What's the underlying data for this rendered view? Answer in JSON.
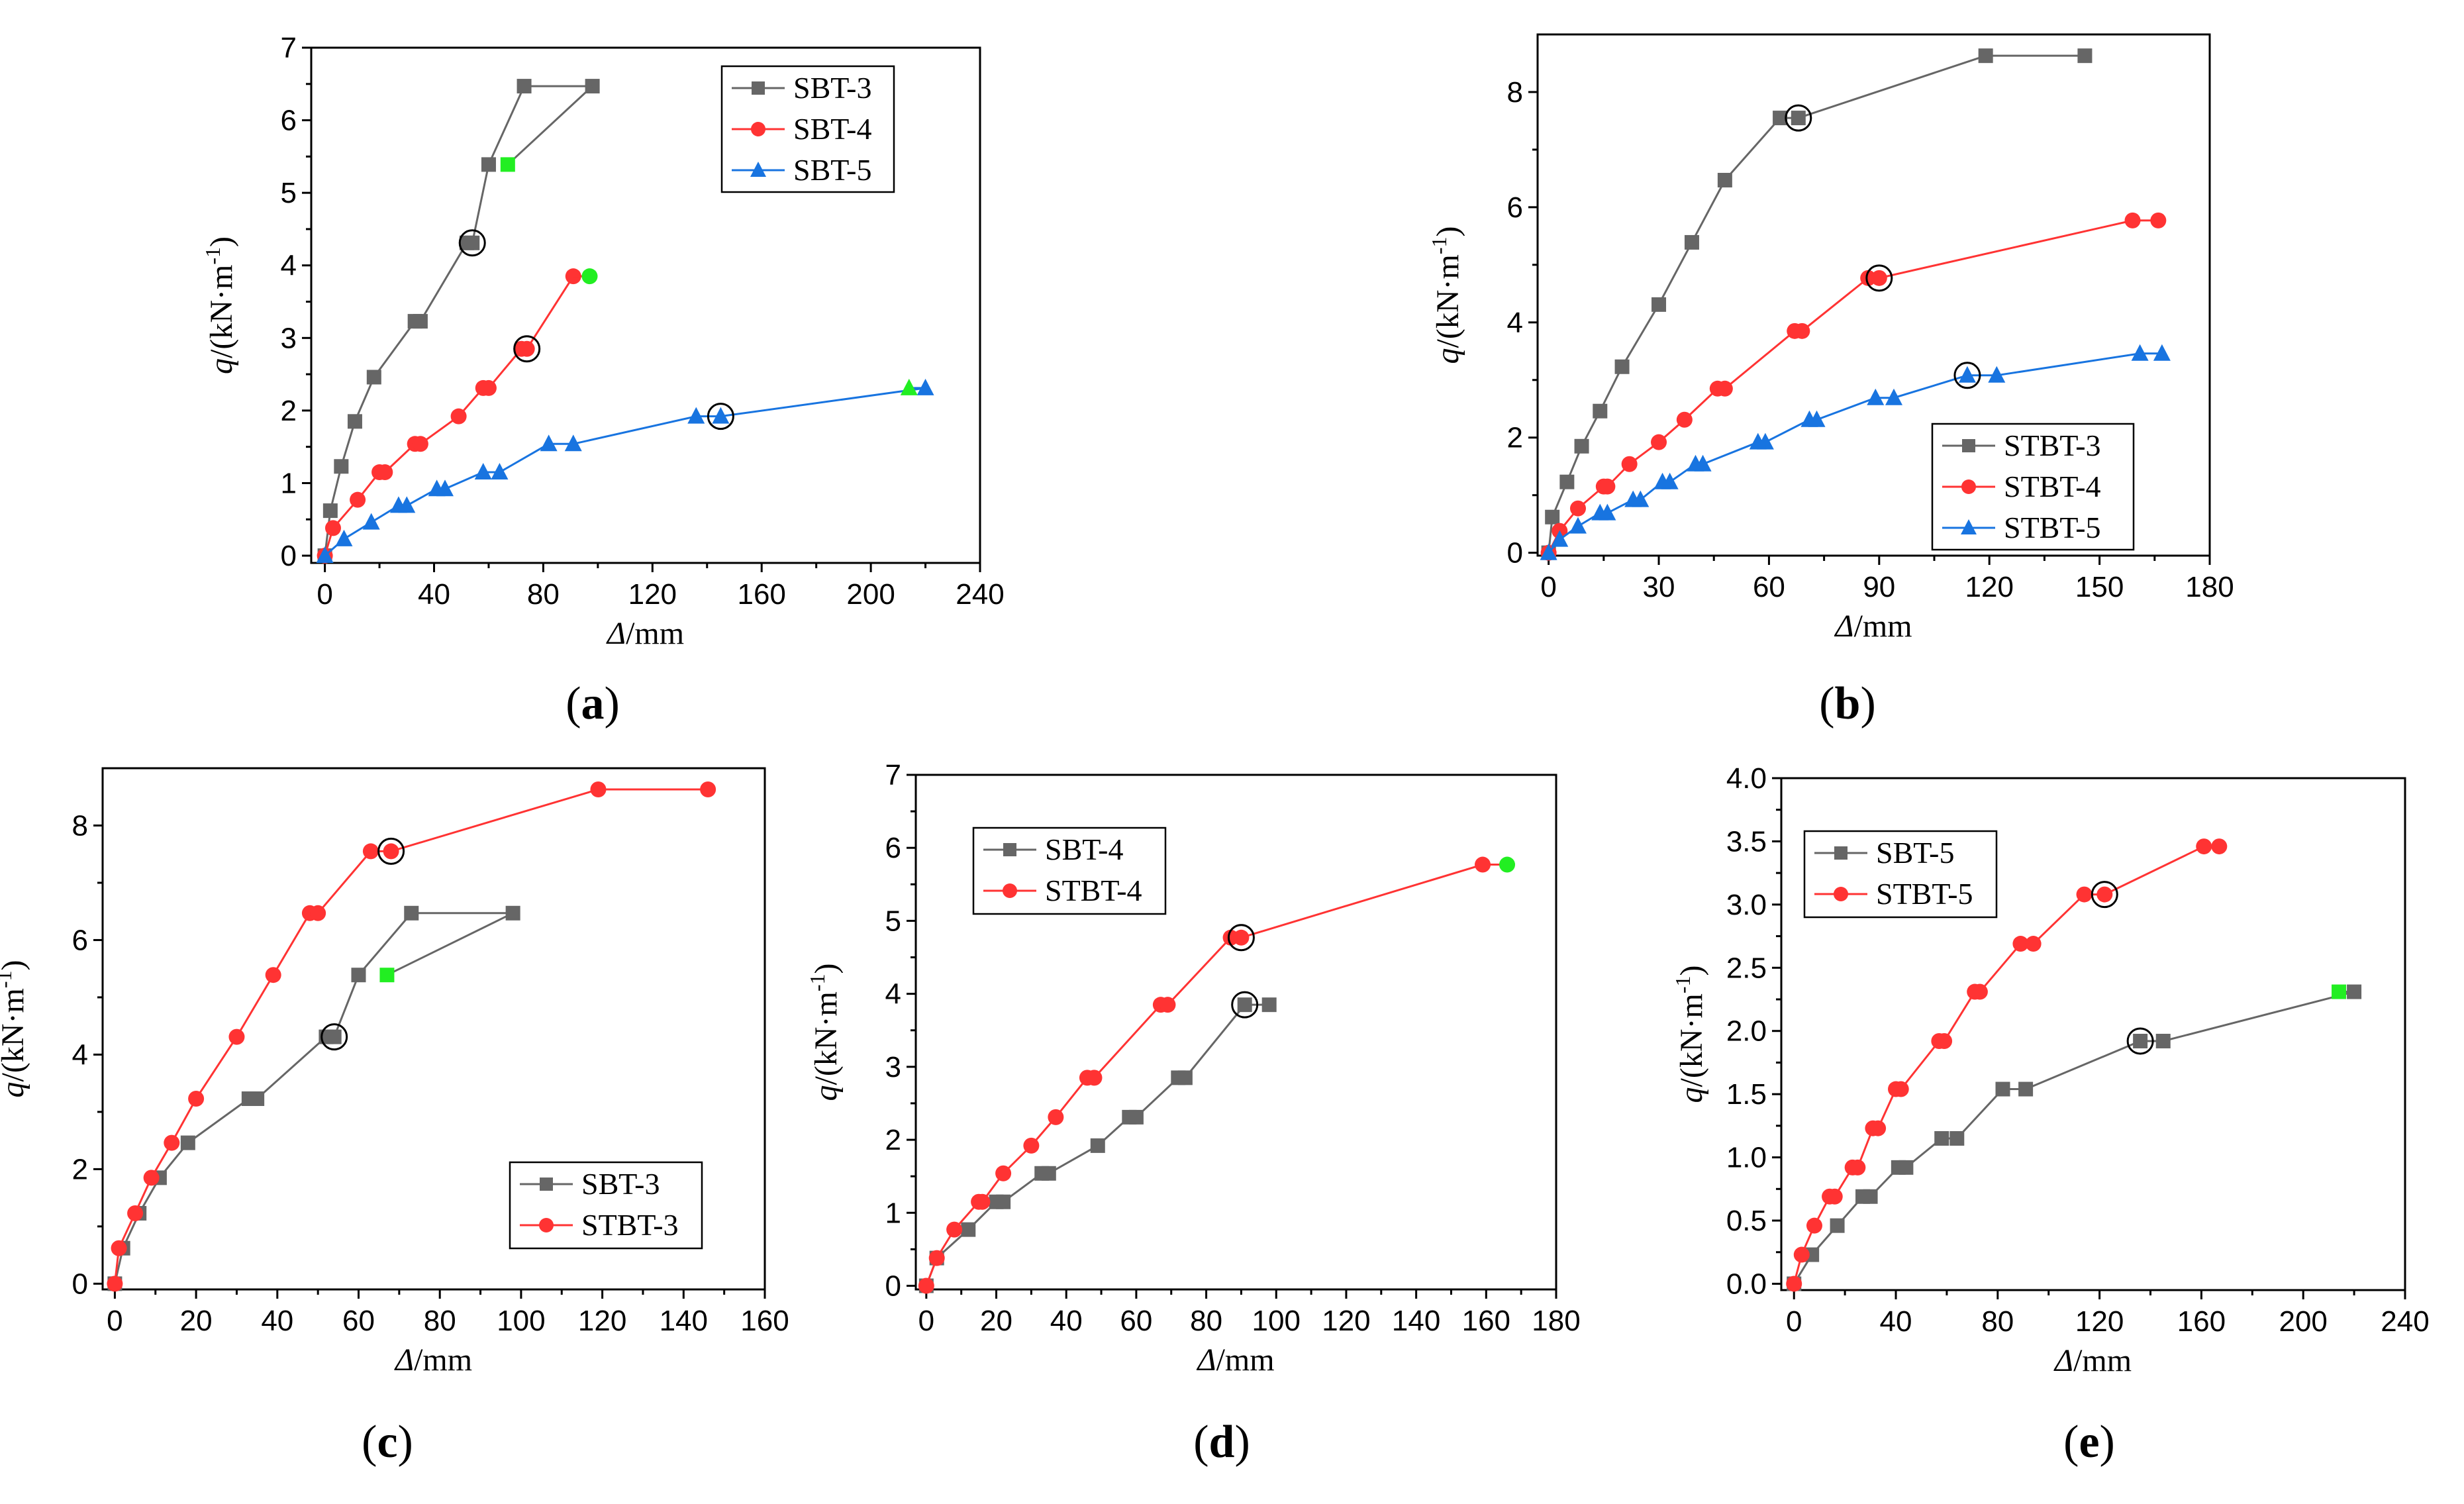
{
  "colors": {
    "gray": "#666666",
    "red": "#ff3333",
    "blue": "#1874e0",
    "failure": "#22ee22",
    "frame": "#000000"
  },
  "chart_data": [
    {
      "type": "line",
      "panel_label": "(a)",
      "xlabel_var": "Δ",
      "xlabel_unit": "/mm",
      "ylabel": "q/(kN·m-1)",
      "xlim": [
        -5,
        240
      ],
      "ylim": [
        -0.1,
        7
      ],
      "xticks": [
        "0",
        "40",
        "80",
        "120",
        "160",
        "200",
        "240"
      ],
      "yticks": [
        "0",
        "1",
        "2",
        "3",
        "4",
        "5",
        "6",
        "7"
      ],
      "legend_position": "top-right",
      "series": [
        {
          "name": "SBT-3",
          "color": "#666666",
          "marker": "square",
          "x": [
            0,
            2,
            6,
            11,
            18,
            33,
            35,
            52,
            54,
            60,
            73,
            98
          ],
          "y": [
            0,
            0.62,
            1.23,
            1.85,
            2.46,
            3.23,
            3.23,
            4.31,
            4.31,
            5.39,
            6.47,
            6.47
          ],
          "circle_index": 8,
          "green_x": 67,
          "green_y": 5.39
        },
        {
          "name": "SBT-4",
          "color": "#ff3333",
          "marker": "circle",
          "x": [
            0,
            3,
            12,
            20,
            22,
            33,
            35,
            49,
            58,
            60,
            72,
            74,
            91
          ],
          "y": [
            0,
            0.38,
            0.77,
            1.15,
            1.15,
            1.54,
            1.54,
            1.92,
            2.31,
            2.31,
            2.85,
            2.85,
            3.85
          ],
          "circle_index": 11,
          "green_x": 97,
          "green_y": 3.85
        },
        {
          "name": "SBT-5",
          "color": "#1874e0",
          "marker": "triangle",
          "x": [
            0,
            7,
            17,
            27,
            30,
            41,
            44,
            58,
            64,
            82,
            91,
            136,
            145,
            220
          ],
          "y": [
            0,
            0.23,
            0.46,
            0.69,
            0.69,
            0.92,
            0.92,
            1.15,
            1.15,
            1.54,
            1.54,
            1.92,
            1.92,
            2.31
          ],
          "circle_index": 12,
          "green_x": 214,
          "green_y": 2.31
        }
      ]
    },
    {
      "type": "line",
      "panel_label": "(b)",
      "xlabel_var": "Δ",
      "xlabel_unit": "/mm",
      "ylabel": "q/(kN·m-1)",
      "xlim": [
        -3,
        180
      ],
      "ylim": [
        -0.05,
        9
      ],
      "xticks": [
        "0",
        "30",
        "60",
        "90",
        "120",
        "150",
        "180"
      ],
      "yticks": [
        "0",
        "2",
        "4",
        "6",
        "8"
      ],
      "legend_position": "bottom-right",
      "series": [
        {
          "name": "STBT-3",
          "color": "#666666",
          "marker": "square",
          "x": [
            0,
            1,
            5,
            9,
            14,
            20,
            30,
            39,
            48,
            63,
            68,
            119,
            146
          ],
          "y": [
            0,
            0.62,
            1.23,
            1.85,
            2.46,
            3.23,
            4.31,
            5.39,
            6.47,
            7.55,
            7.55,
            8.63,
            8.63
          ],
          "circle_index": 10
        },
        {
          "name": "STBT-4",
          "color": "#ff3333",
          "marker": "circle",
          "x": [
            0,
            3,
            8,
            15,
            16,
            22,
            30,
            37,
            46,
            48,
            67,
            69,
            87,
            90,
            159,
            166
          ],
          "y": [
            0,
            0.38,
            0.77,
            1.15,
            1.15,
            1.54,
            1.92,
            2.31,
            2.85,
            2.85,
            3.85,
            3.85,
            4.77,
            4.77,
            5.77,
            5.77
          ],
          "circle_index": 13
        },
        {
          "name": "STBT-5",
          "color": "#1874e0",
          "marker": "triangle",
          "x": [
            0,
            3,
            8,
            14,
            16,
            23,
            25,
            31,
            33,
            40,
            42,
            57,
            59,
            71,
            73,
            89,
            94,
            114,
            122,
            161,
            167
          ],
          "y": [
            0,
            0.23,
            0.46,
            0.69,
            0.69,
            0.92,
            0.92,
            1.23,
            1.23,
            1.54,
            1.54,
            1.92,
            1.92,
            2.31,
            2.31,
            2.69,
            2.69,
            3.08,
            3.08,
            3.46,
            3.46
          ],
          "circle_index": 17
        }
      ]
    },
    {
      "type": "line",
      "panel_label": "(c)",
      "xlabel_var": "Δ",
      "xlabel_unit": "/mm",
      "ylabel": "q/(kN·m-1)",
      "xlim": [
        -3,
        160
      ],
      "ylim": [
        -0.1,
        9
      ],
      "xticks": [
        "0",
        "20",
        "40",
        "60",
        "80",
        "100",
        "120",
        "140",
        "160"
      ],
      "yticks": [
        "0",
        "2",
        "4",
        "6",
        "8"
      ],
      "legend_position": "bottom-right",
      "series": [
        {
          "name": "SBT-3",
          "color": "#666666",
          "marker": "square",
          "x": [
            0,
            2,
            6,
            11,
            18,
            33,
            35,
            52,
            54,
            60,
            73,
            98
          ],
          "y": [
            0,
            0.62,
            1.23,
            1.85,
            2.46,
            3.23,
            3.23,
            4.31,
            4.31,
            5.39,
            6.47,
            6.47
          ],
          "circle_index": 8,
          "green_x": 67,
          "green_y": 5.39
        },
        {
          "name": "STBT-3",
          "color": "#ff3333",
          "marker": "circle",
          "x": [
            0,
            1,
            5,
            9,
            14,
            20,
            30,
            39,
            48,
            50,
            63,
            68,
            119,
            146
          ],
          "y": [
            0,
            0.62,
            1.23,
            1.85,
            2.46,
            3.23,
            4.31,
            5.39,
            6.47,
            6.47,
            7.55,
            7.55,
            8.63,
            8.63
          ],
          "circle_index": 11
        }
      ]
    },
    {
      "type": "line",
      "panel_label": "(d)",
      "xlabel_var": "Δ",
      "xlabel_unit": "/mm",
      "ylabel": "q/(kN·m-1)",
      "xlim": [
        -3,
        180
      ],
      "ylim": [
        -0.05,
        7
      ],
      "xticks": [
        "0",
        "20",
        "40",
        "60",
        "80",
        "100",
        "120",
        "140",
        "160",
        "180"
      ],
      "yticks": [
        "0",
        "1",
        "2",
        "3",
        "4",
        "5",
        "6",
        "7"
      ],
      "legend_position": "top-left",
      "series": [
        {
          "name": "SBT-4",
          "color": "#666666",
          "marker": "square",
          "x": [
            0,
            3,
            12,
            20,
            22,
            33,
            35,
            49,
            58,
            60,
            72,
            74,
            91,
            98
          ],
          "y": [
            0,
            0.38,
            0.77,
            1.15,
            1.15,
            1.54,
            1.54,
            1.92,
            2.31,
            2.31,
            2.85,
            2.85,
            3.85,
            3.85
          ],
          "circle_index": 12
        },
        {
          "name": "STBT-4",
          "color": "#ff3333",
          "marker": "circle",
          "x": [
            0,
            3,
            8,
            15,
            16,
            22,
            30,
            37,
            46,
            48,
            67,
            69,
            87,
            90,
            159
          ],
          "y": [
            0,
            0.38,
            0.77,
            1.15,
            1.15,
            1.54,
            1.92,
            2.31,
            2.85,
            2.85,
            3.85,
            3.85,
            4.77,
            4.77,
            5.77
          ],
          "circle_index": 13,
          "green_x": 166,
          "green_y": 5.77
        }
      ]
    },
    {
      "type": "line",
      "panel_label": "(e)",
      "xlabel_var": "Δ",
      "xlabel_unit": "/mm",
      "ylabel": "q/(kN·m-1)",
      "xlim": [
        -5,
        240
      ],
      "ylim": [
        -0.05,
        4.0
      ],
      "xticks": [
        "0",
        "40",
        "80",
        "120",
        "160",
        "200",
        "240"
      ],
      "yticks": [
        "0.0",
        "0.5",
        "1.0",
        "1.5",
        "2.0",
        "2.5",
        "3.0",
        "3.5",
        "4.0"
      ],
      "legend_position": "top-left",
      "series": [
        {
          "name": "SBT-5",
          "color": "#666666",
          "marker": "square",
          "x": [
            0,
            7,
            17,
            27,
            30,
            41,
            44,
            58,
            64,
            82,
            91,
            136,
            145,
            220
          ],
          "y": [
            0,
            0.23,
            0.46,
            0.69,
            0.69,
            0.92,
            0.92,
            1.15,
            1.15,
            1.54,
            1.54,
            1.92,
            1.92,
            2.31
          ],
          "circle_index": 11,
          "green_x": 214,
          "green_y": 2.31
        },
        {
          "name": "STBT-5",
          "color": "#ff3333",
          "marker": "circle",
          "x": [
            0,
            3,
            8,
            14,
            16,
            23,
            25,
            31,
            33,
            40,
            42,
            57,
            59,
            71,
            73,
            89,
            94,
            114,
            122,
            161,
            167
          ],
          "y": [
            0,
            0.23,
            0.46,
            0.69,
            0.69,
            0.92,
            0.92,
            1.23,
            1.23,
            1.54,
            1.54,
            1.92,
            1.92,
            2.31,
            2.31,
            2.69,
            2.69,
            3.08,
            3.08,
            3.46,
            3.46
          ],
          "circle_index": 18
        }
      ]
    }
  ]
}
